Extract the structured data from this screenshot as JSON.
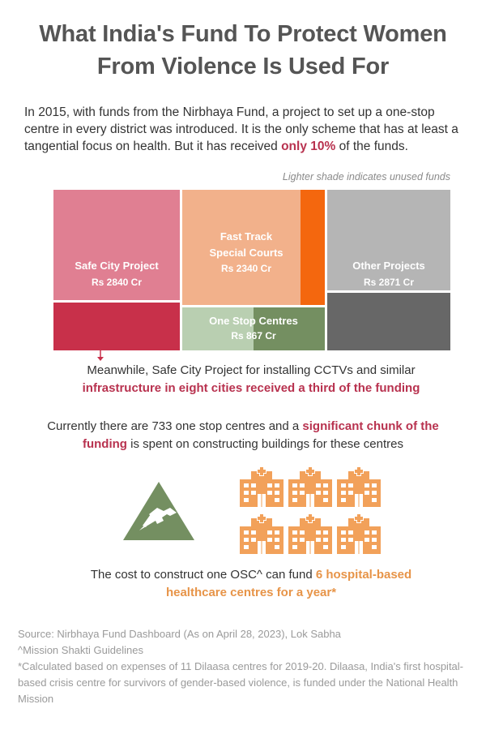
{
  "title_line1": "What India's Fund To Protect Women",
  "title_line2": "From Violence Is Used For",
  "intro": {
    "text_before": "In 2015, with funds from the Nirbhaya Fund, a project to set up a one-stop centre in every district was introduced. It is the only scheme that has at least a tangential focus on health. But it has received ",
    "highlight": "only 10%",
    "text_after": " of the funds."
  },
  "note": "Lighter shade indicates unused funds",
  "chart_data": {
    "type": "treemap",
    "unit": "Rs Cr",
    "items": [
      {
        "name": "Safe City Project",
        "label": "Rs 2840 Cr",
        "value": 2840,
        "used_share": 0.38,
        "color_unused": "#e07f92",
        "color_used": "#c8304a"
      },
      {
        "name": "Fast Track Special Courts",
        "label": "Rs 2340 Cr",
        "value": 2340,
        "used_share": 0.14,
        "color_unused": "#f2b18b",
        "color_used": "#f4670e"
      },
      {
        "name": "One Stop Centres",
        "label": "Rs 867 Cr",
        "value": 867,
        "used_share": 0.5,
        "color_unused": "#b9cfb1",
        "color_used": "#748f61"
      },
      {
        "name": "Other Projects",
        "label": "Rs 2871 Cr",
        "value": 2871,
        "used_share": 0.36,
        "color_unused": "#b5b5b5",
        "color_used": "#676767"
      }
    ]
  },
  "callout1": {
    "text": "Meanwhile, Safe City Project for installing CCTVs and similar",
    "highlight": "infrastructure in eight cities received a third of the funding"
  },
  "callout2": {
    "text_before": "Currently there are 733 one stop centres and a ",
    "highlight": "significant chunk of the funding",
    "text_after": " is spent on constructing buildings for these centres"
  },
  "icons": {
    "tent": "tent-icon",
    "hospital": "hospital-icon",
    "hospital_count": 6,
    "tent_color": "#748f61",
    "hospital_color": "#f2a15a"
  },
  "cost": {
    "text_before": "The cost to construct one OSC^ can fund ",
    "highlight": "6 hospital-based healthcare centres for a year*"
  },
  "sources": [
    "Source: Nirbhaya Fund Dashboard (As on April 28, 2023), Lok Sabha",
    "^Mission Shakti Guidelines",
    "*Calculated based on expenses of 11 Dilaasa centres for 2019-20. Dilaasa, India's first hospital-based crisis centre for survivors of gender-based violence, is funded under the National Health Mission"
  ]
}
